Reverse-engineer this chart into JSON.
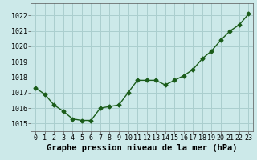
{
  "x": [
    0,
    1,
    2,
    3,
    4,
    5,
    6,
    7,
    8,
    9,
    10,
    11,
    12,
    13,
    14,
    15,
    16,
    17,
    18,
    19,
    20,
    21,
    22,
    23
  ],
  "y": [
    1017.3,
    1016.9,
    1016.2,
    1015.8,
    1015.3,
    1015.2,
    1015.2,
    1016.0,
    1016.1,
    1016.2,
    1017.0,
    1017.8,
    1017.8,
    1017.8,
    1017.5,
    1017.8,
    1018.1,
    1018.5,
    1019.2,
    1019.7,
    1020.4,
    1021.0,
    1021.4,
    1022.1
  ],
  "line_color": "#1a5c1a",
  "marker": "D",
  "marker_size": 2.5,
  "bg_color": "#cce9e9",
  "grid_color": "#aacece",
  "xlabel": "Graphe pression niveau de la mer (hPa)",
  "xlabel_fontsize": 7.5,
  "xlabel_weight": "bold",
  "ylim": [
    1014.5,
    1022.8
  ],
  "yticks": [
    1015,
    1016,
    1017,
    1018,
    1019,
    1020,
    1021,
    1022
  ],
  "xticks": [
    0,
    1,
    2,
    3,
    4,
    5,
    6,
    7,
    8,
    9,
    10,
    11,
    12,
    13,
    14,
    15,
    16,
    17,
    18,
    19,
    20,
    21,
    22,
    23
  ],
  "tick_fontsize": 6,
  "line_width": 1.0
}
